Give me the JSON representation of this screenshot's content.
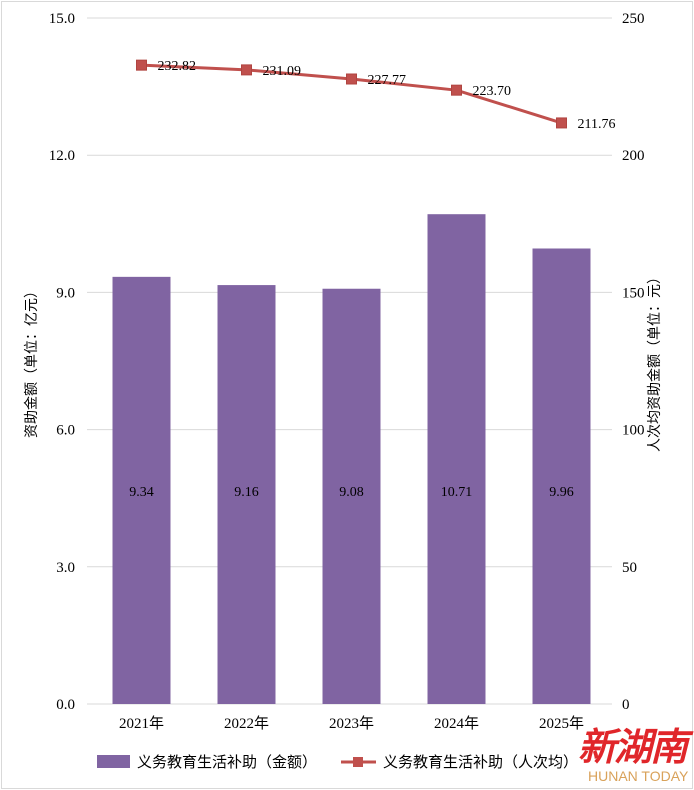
{
  "chart_data": {
    "type": "bar+line",
    "categories": [
      "2021年",
      "2022年",
      "2023年",
      "2024年",
      "2025年"
    ],
    "series": [
      {
        "name": "义务教育生活补助（金额）",
        "type": "bar",
        "axis": "left",
        "values": [
          9.34,
          9.16,
          9.08,
          10.71,
          9.96
        ],
        "labels": [
          "9.34",
          "9.16",
          "9.08",
          "10.71",
          "9.96"
        ],
        "color": "#8064a2"
      },
      {
        "name": "义务教育生活补助（人次均）",
        "type": "line",
        "axis": "right",
        "values": [
          232.82,
          231.09,
          227.77,
          223.7,
          211.76
        ],
        "labels": [
          "232.82",
          "231.09",
          "227.77",
          "223.70",
          "211.76"
        ],
        "color": "#c0504d"
      }
    ],
    "ylabel_left": "资助金额（单位：亿元）",
    "ylabel_right": "人次均资助金额（单位：元）",
    "ylim_left": [
      0,
      15
    ],
    "ylim_right": [
      0,
      250
    ],
    "yticks_left": [
      "0.0",
      "3.0",
      "6.0",
      "9.0",
      "12.0",
      "15.0"
    ],
    "yticks_right": [
      "0",
      "50",
      "100",
      "150",
      "200",
      "250"
    ],
    "grid": true,
    "legend_position": "bottom"
  },
  "logo": {
    "cn": "新湖南",
    "en": "HUNAN TODAY"
  }
}
